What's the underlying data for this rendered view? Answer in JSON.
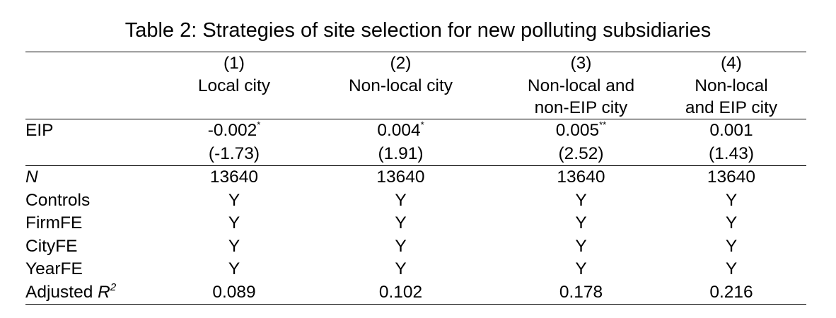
{
  "title": "Table 2: Strategies of site selection for new polluting subsidiaries",
  "columns": [
    {
      "number": "(1)",
      "label_lines": [
        "Local city"
      ]
    },
    {
      "number": "(2)",
      "label_lines": [
        "Non-local city"
      ]
    },
    {
      "number": "(3)",
      "label_lines": [
        "Non-local and",
        "non-EIP city"
      ]
    },
    {
      "number": "(4)",
      "label_lines": [
        "Non-local",
        "and EIP city"
      ]
    }
  ],
  "rows": {
    "eip": {
      "label": "EIP",
      "coef": [
        "-0.002",
        "0.004",
        "0.005",
        "0.001"
      ],
      "stars": [
        "*",
        "*",
        "**",
        ""
      ],
      "tstat": [
        "(-1.73)",
        "(1.91)",
        "(2.52)",
        "(1.43)"
      ]
    },
    "n": {
      "label": "N",
      "values": [
        "13640",
        "13640",
        "13640",
        "13640"
      ]
    },
    "controls": {
      "label": "Controls",
      "values": [
        "Y",
        "Y",
        "Y",
        "Y"
      ]
    },
    "firmfe": {
      "label": "FirmFE",
      "values": [
        "Y",
        "Y",
        "Y",
        "Y"
      ]
    },
    "cityfe": {
      "label": "CityFE",
      "values": [
        "Y",
        "Y",
        "Y",
        "Y"
      ]
    },
    "yearfe": {
      "label": "YearFE",
      "values": [
        "Y",
        "Y",
        "Y",
        "Y"
      ]
    },
    "adj_r2": {
      "label_prefix": "Adjusted",
      "label_symbol": "R",
      "label_exponent": "2",
      "values": [
        "0.089",
        "0.102",
        "0.178",
        "0.216"
      ]
    }
  }
}
